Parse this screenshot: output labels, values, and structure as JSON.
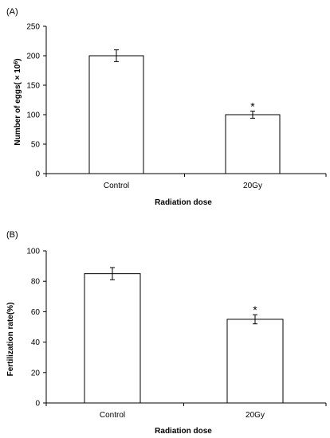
{
  "chart_data": [
    {
      "type": "bar",
      "panel_label": "(A)",
      "categories": [
        "Control",
        "20Gy"
      ],
      "values": [
        200,
        100
      ],
      "error": [
        10,
        6
      ],
      "significance": [
        "",
        "*"
      ],
      "xlabel": "Radiation dose",
      "ylabel_main": "Number of eggs( × 10",
      "ylabel_sup": "6",
      "ylabel_end": ")",
      "ylim": [
        0,
        250
      ],
      "yticks": [
        0,
        50,
        100,
        150,
        200,
        250
      ],
      "grid": false,
      "legend": "none",
      "colors": {
        "bar_fill": "#ffffff",
        "bar_stroke": "#000000"
      }
    },
    {
      "type": "bar",
      "panel_label": "(B)",
      "categories": [
        "Control",
        "20Gy"
      ],
      "values": [
        85,
        55
      ],
      "error": [
        4,
        3
      ],
      "significance": [
        "",
        "*"
      ],
      "xlabel": "Radiation dose",
      "ylabel_main": "Fertilization rate(%)",
      "ylabel_sup": "",
      "ylabel_end": "",
      "ylim": [
        0,
        100
      ],
      "yticks": [
        0,
        20,
        40,
        60,
        80,
        100
      ],
      "grid": false,
      "legend": "none",
      "colors": {
        "bar_fill": "#ffffff",
        "bar_stroke": "#000000"
      }
    }
  ]
}
